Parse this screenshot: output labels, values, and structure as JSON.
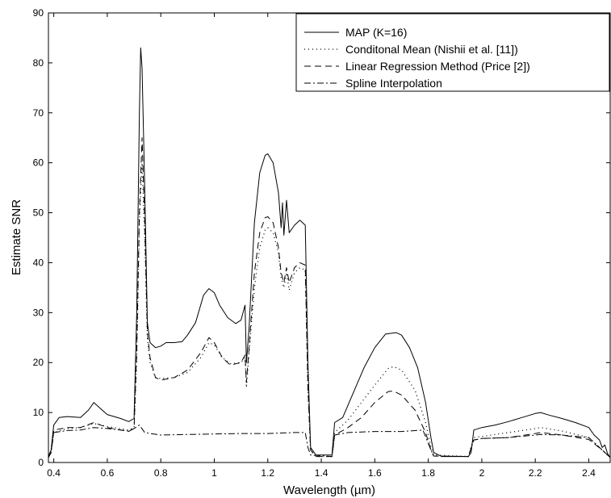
{
  "chart_data": {
    "type": "line",
    "xlabel": "Wavelength (µm)",
    "ylabel": "Estimate SNR",
    "xlim": [
      0.38,
      2.48
    ],
    "ylim": [
      0,
      90
    ],
    "xticks": [
      0.4,
      0.6,
      0.8,
      1.0,
      1.2,
      1.4,
      1.6,
      1.8,
      2.0,
      2.2,
      2.4
    ],
    "xtick_labels": [
      "0.4",
      "0.6",
      "0.8",
      "1",
      "1.2",
      "1.4",
      "1.6",
      "1.8",
      "2",
      "2.2",
      "2.4"
    ],
    "yticks": [
      0,
      10,
      20,
      30,
      40,
      50,
      60,
      70,
      80,
      90
    ],
    "ytick_labels": [
      "0",
      "10",
      "20",
      "30",
      "40",
      "50",
      "60",
      "70",
      "80",
      "90"
    ],
    "grid": false,
    "legend_position": "top-right",
    "series": [
      {
        "name": "MAP (K=16)",
        "style": "solid",
        "color": "#000000",
        "points": [
          [
            0.38,
            1.2
          ],
          [
            0.39,
            2.5
          ],
          [
            0.4,
            7.5
          ],
          [
            0.42,
            9.0
          ],
          [
            0.45,
            9.2
          ],
          [
            0.5,
            9.0
          ],
          [
            0.53,
            10.5
          ],
          [
            0.55,
            12.0
          ],
          [
            0.57,
            11.0
          ],
          [
            0.6,
            9.6
          ],
          [
            0.65,
            8.8
          ],
          [
            0.68,
            8.2
          ],
          [
            0.7,
            8.8
          ],
          [
            0.71,
            30.0
          ],
          [
            0.72,
            70.0
          ],
          [
            0.725,
            83.0
          ],
          [
            0.73,
            79.0
          ],
          [
            0.74,
            55.0
          ],
          [
            0.75,
            28.0
          ],
          [
            0.76,
            24.0
          ],
          [
            0.78,
            23.0
          ],
          [
            0.8,
            23.3
          ],
          [
            0.82,
            24.0
          ],
          [
            0.85,
            24.0
          ],
          [
            0.88,
            24.2
          ],
          [
            0.9,
            25.5
          ],
          [
            0.93,
            28.0
          ],
          [
            0.96,
            33.5
          ],
          [
            0.98,
            34.8
          ],
          [
            1.0,
            34.0
          ],
          [
            1.02,
            31.5
          ],
          [
            1.05,
            29.0
          ],
          [
            1.08,
            27.8
          ],
          [
            1.1,
            28.5
          ],
          [
            1.115,
            31.5
          ],
          [
            1.12,
            20.0
          ],
          [
            1.13,
            27.0
          ],
          [
            1.15,
            48.0
          ],
          [
            1.17,
            58.0
          ],
          [
            1.19,
            61.5
          ],
          [
            1.2,
            61.8
          ],
          [
            1.22,
            60.0
          ],
          [
            1.24,
            54.0
          ],
          [
            1.25,
            47.0
          ],
          [
            1.255,
            52.0
          ],
          [
            1.26,
            45.5
          ],
          [
            1.27,
            52.5
          ],
          [
            1.28,
            46.0
          ],
          [
            1.3,
            47.5
          ],
          [
            1.32,
            48.5
          ],
          [
            1.34,
            47.5
          ],
          [
            1.35,
            20.0
          ],
          [
            1.36,
            3.0
          ],
          [
            1.38,
            1.5
          ],
          [
            1.44,
            1.5
          ],
          [
            1.45,
            8.0
          ],
          [
            1.48,
            9.0
          ],
          [
            1.52,
            14.0
          ],
          [
            1.56,
            19.0
          ],
          [
            1.6,
            23.0
          ],
          [
            1.64,
            25.7
          ],
          [
            1.68,
            26.0
          ],
          [
            1.7,
            25.5
          ],
          [
            1.73,
            23.0
          ],
          [
            1.76,
            19.0
          ],
          [
            1.79,
            12.0
          ],
          [
            1.81,
            5.0
          ],
          [
            1.82,
            2.0
          ],
          [
            1.85,
            1.2
          ],
          [
            1.95,
            1.2
          ],
          [
            1.96,
            2.0
          ],
          [
            1.97,
            6.5
          ],
          [
            2.0,
            7.0
          ],
          [
            2.05,
            7.5
          ],
          [
            2.1,
            8.2
          ],
          [
            2.15,
            9.0
          ],
          [
            2.2,
            9.8
          ],
          [
            2.22,
            10.0
          ],
          [
            2.25,
            9.5
          ],
          [
            2.3,
            8.8
          ],
          [
            2.35,
            8.0
          ],
          [
            2.4,
            7.0
          ],
          [
            2.42,
            5.5
          ],
          [
            2.44,
            4.5
          ],
          [
            2.45,
            3.0
          ],
          [
            2.46,
            3.5
          ],
          [
            2.47,
            1.8
          ],
          [
            2.48,
            1.0
          ]
        ]
      },
      {
        "name": "Conditonal Mean (Nishii et al. [11])",
        "style": "dotted",
        "color": "#000000",
        "points": [
          [
            0.38,
            1.0
          ],
          [
            0.39,
            2.0
          ],
          [
            0.4,
            6.0
          ],
          [
            0.45,
            6.8
          ],
          [
            0.5,
            7.0
          ],
          [
            0.55,
            7.8
          ],
          [
            0.6,
            7.2
          ],
          [
            0.68,
            6.5
          ],
          [
            0.7,
            7.0
          ],
          [
            0.71,
            20.0
          ],
          [
            0.72,
            48.0
          ],
          [
            0.73,
            60.0
          ],
          [
            0.74,
            45.0
          ],
          [
            0.75,
            25.0
          ],
          [
            0.76,
            20.0
          ],
          [
            0.78,
            17.0
          ],
          [
            0.8,
            16.8
          ],
          [
            0.85,
            17.0
          ],
          [
            0.9,
            18.0
          ],
          [
            0.95,
            21.0
          ],
          [
            0.98,
            24.0
          ],
          [
            1.0,
            23.5
          ],
          [
            1.03,
            21.0
          ],
          [
            1.06,
            19.8
          ],
          [
            1.1,
            20.0
          ],
          [
            1.115,
            21.0
          ],
          [
            1.12,
            15.0
          ],
          [
            1.13,
            22.0
          ],
          [
            1.15,
            35.0
          ],
          [
            1.17,
            43.0
          ],
          [
            1.19,
            46.5
          ],
          [
            1.2,
            47.0
          ],
          [
            1.22,
            46.0
          ],
          [
            1.24,
            42.0
          ],
          [
            1.25,
            37.0
          ],
          [
            1.26,
            35.0
          ],
          [
            1.27,
            38.0
          ],
          [
            1.28,
            34.5
          ],
          [
            1.3,
            38.0
          ],
          [
            1.32,
            39.0
          ],
          [
            1.34,
            38.5
          ],
          [
            1.35,
            15.0
          ],
          [
            1.36,
            2.5
          ],
          [
            1.38,
            1.2
          ],
          [
            1.44,
            1.2
          ],
          [
            1.45,
            6.0
          ],
          [
            1.5,
            8.5
          ],
          [
            1.55,
            12.0
          ],
          [
            1.6,
            15.5
          ],
          [
            1.65,
            18.8
          ],
          [
            1.67,
            19.2
          ],
          [
            1.7,
            18.5
          ],
          [
            1.75,
            14.5
          ],
          [
            1.79,
            8.0
          ],
          [
            1.81,
            3.0
          ],
          [
            1.82,
            1.5
          ],
          [
            1.95,
            1.2
          ],
          [
            1.97,
            5.0
          ],
          [
            2.0,
            5.2
          ],
          [
            2.1,
            6.0
          ],
          [
            2.2,
            6.8
          ],
          [
            2.22,
            7.0
          ],
          [
            2.3,
            6.3
          ],
          [
            2.4,
            5.0
          ],
          [
            2.45,
            2.5
          ],
          [
            2.48,
            1.0
          ]
        ]
      },
      {
        "name": "Linear Regression Method (Price [2])",
        "style": "dashed",
        "color": "#000000",
        "points": [
          [
            0.38,
            1.0
          ],
          [
            0.39,
            2.0
          ],
          [
            0.4,
            6.5
          ],
          [
            0.45,
            7.0
          ],
          [
            0.5,
            7.0
          ],
          [
            0.55,
            8.0
          ],
          [
            0.6,
            7.0
          ],
          [
            0.68,
            6.2
          ],
          [
            0.7,
            6.8
          ],
          [
            0.71,
            22.0
          ],
          [
            0.72,
            50.0
          ],
          [
            0.73,
            65.0
          ],
          [
            0.74,
            48.0
          ],
          [
            0.75,
            26.0
          ],
          [
            0.76,
            21.0
          ],
          [
            0.78,
            17.0
          ],
          [
            0.8,
            16.5
          ],
          [
            0.85,
            17.0
          ],
          [
            0.9,
            18.5
          ],
          [
            0.95,
            22.0
          ],
          [
            0.98,
            25.0
          ],
          [
            1.0,
            24.0
          ],
          [
            1.03,
            21.0
          ],
          [
            1.06,
            19.5
          ],
          [
            1.1,
            20.0
          ],
          [
            1.115,
            21.5
          ],
          [
            1.12,
            16.0
          ],
          [
            1.13,
            23.0
          ],
          [
            1.15,
            38.0
          ],
          [
            1.17,
            46.0
          ],
          [
            1.19,
            49.0
          ],
          [
            1.2,
            49.2
          ],
          [
            1.22,
            48.0
          ],
          [
            1.24,
            43.0
          ],
          [
            1.25,
            38.0
          ],
          [
            1.26,
            36.0
          ],
          [
            1.27,
            39.0
          ],
          [
            1.28,
            36.0
          ],
          [
            1.3,
            39.0
          ],
          [
            1.32,
            40.0
          ],
          [
            1.34,
            39.5
          ],
          [
            1.35,
            15.0
          ],
          [
            1.36,
            2.5
          ],
          [
            1.38,
            1.2
          ],
          [
            1.44,
            1.2
          ],
          [
            1.45,
            5.5
          ],
          [
            1.5,
            7.0
          ],
          [
            1.55,
            9.0
          ],
          [
            1.6,
            12.0
          ],
          [
            1.65,
            14.2
          ],
          [
            1.67,
            14.3
          ],
          [
            1.7,
            13.5
          ],
          [
            1.75,
            10.5
          ],
          [
            1.79,
            6.0
          ],
          [
            1.81,
            2.5
          ],
          [
            1.82,
            1.3
          ],
          [
            1.95,
            1.2
          ],
          [
            1.97,
            4.5
          ],
          [
            2.0,
            4.8
          ],
          [
            2.1,
            5.0
          ],
          [
            2.2,
            5.8
          ],
          [
            2.22,
            6.0
          ],
          [
            2.3,
            5.5
          ],
          [
            2.4,
            4.6
          ],
          [
            2.45,
            2.5
          ],
          [
            2.48,
            1.0
          ]
        ]
      },
      {
        "name": "Spline Interpolation",
        "style": "dashdot",
        "color": "#000000",
        "points": [
          [
            0.38,
            1.0
          ],
          [
            0.39,
            2.0
          ],
          [
            0.4,
            6.0
          ],
          [
            0.45,
            6.4
          ],
          [
            0.5,
            6.5
          ],
          [
            0.55,
            7.0
          ],
          [
            0.6,
            6.8
          ],
          [
            0.68,
            6.3
          ],
          [
            0.7,
            6.8
          ],
          [
            0.72,
            7.5
          ],
          [
            0.74,
            6.0
          ],
          [
            0.76,
            5.8
          ],
          [
            0.8,
            5.5
          ],
          [
            0.9,
            5.6
          ],
          [
            1.0,
            5.7
          ],
          [
            1.1,
            5.8
          ],
          [
            1.2,
            5.8
          ],
          [
            1.3,
            6.0
          ],
          [
            1.34,
            6.0
          ],
          [
            1.35,
            3.0
          ],
          [
            1.36,
            1.5
          ],
          [
            1.44,
            1.2
          ],
          [
            1.45,
            5.5
          ],
          [
            1.5,
            6.0
          ],
          [
            1.6,
            6.2
          ],
          [
            1.7,
            6.2
          ],
          [
            1.78,
            6.5
          ],
          [
            1.81,
            2.5
          ],
          [
            1.82,
            1.3
          ],
          [
            1.95,
            1.2
          ],
          [
            1.97,
            4.5
          ],
          [
            2.0,
            4.8
          ],
          [
            2.1,
            5.0
          ],
          [
            2.2,
            5.5
          ],
          [
            2.22,
            5.6
          ],
          [
            2.3,
            5.5
          ],
          [
            2.4,
            5.0
          ],
          [
            2.45,
            2.5
          ],
          [
            2.48,
            1.0
          ]
        ]
      }
    ]
  }
}
